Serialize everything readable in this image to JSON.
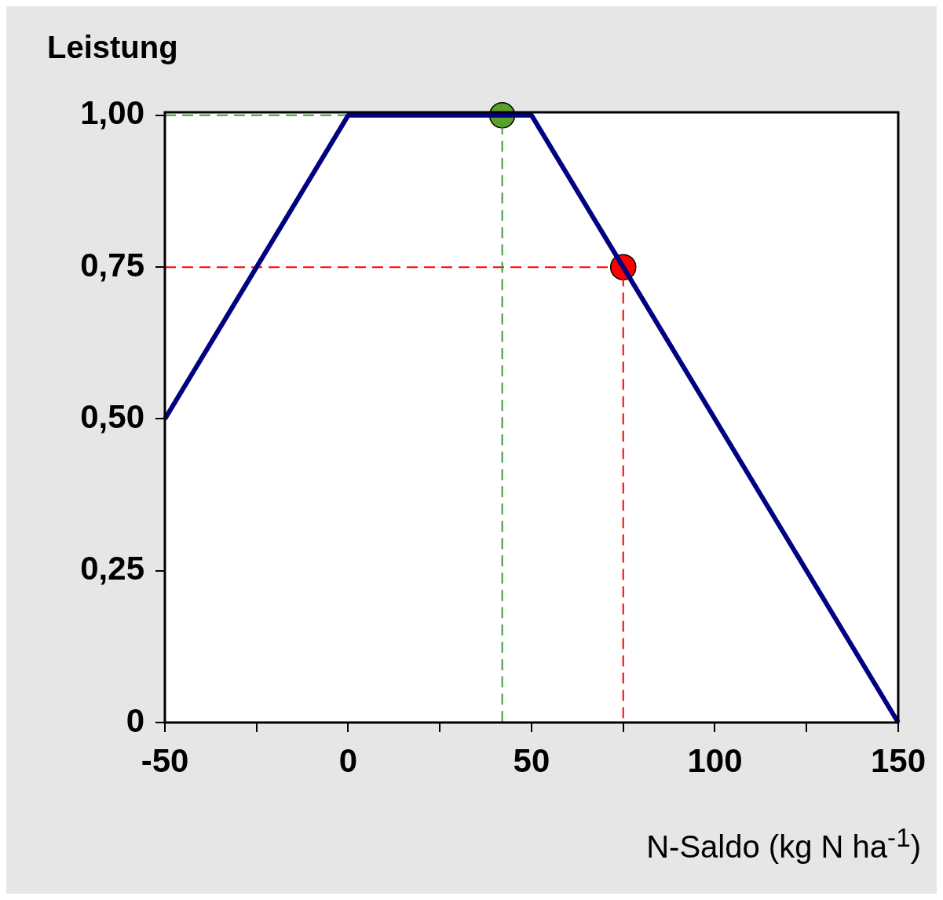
{
  "chart_data": {
    "type": "line",
    "ylabel": "Leistung",
    "xlabel": "N-Saldo (kg N ha$^{-1}$)",
    "xlim": [
      -50,
      150
    ],
    "xticks": [
      -50,
      {
        "value": -25,
        "label": null
      },
      0,
      {
        "value": 25,
        "label": null
      },
      50,
      {
        "value": 75,
        "label": null
      },
      100,
      {
        "value": 125,
        "label": null
      },
      150
    ],
    "ylim": [
      0,
      1.005
    ],
    "yticks": [
      {
        "value": 0,
        "label": "0"
      },
      {
        "value": 0.25,
        "label": "0,25"
      },
      {
        "value": 0.5,
        "label": "0,50"
      },
      {
        "value": 0.75,
        "label": "0,75"
      },
      {
        "value": 1,
        "label": "1,00"
      }
    ],
    "grid": false,
    "marker": "none",
    "series": [
      {
        "type": "line",
        "color": "#000080",
        "x": [
          -50,
          0,
          50,
          150
        ],
        "values": [
          0.5,
          1,
          1,
          0
        ]
      },
      {
        "type": "line",
        "color": "#33a02c",
        "line_style": "dashed",
        "x": [
          -50,
          42,
          42
        ],
        "values": [
          1,
          1,
          0
        ]
      },
      {
        "type": "line",
        "color": "#ff0000",
        "line_style": "dashed",
        "x": [
          -50,
          75,
          75
        ],
        "values": [
          0.75,
          0.75,
          0
        ]
      },
      {
        "type": "scatter",
        "color": "#5ca028",
        "marker": "circle",
        "x": [
          42
        ],
        "values": [
          1
        ]
      },
      {
        "type": "scatter",
        "color": "#ff0000",
        "marker": "circle",
        "x": [
          75
        ],
        "values": [
          0.75
        ]
      }
    ]
  }
}
